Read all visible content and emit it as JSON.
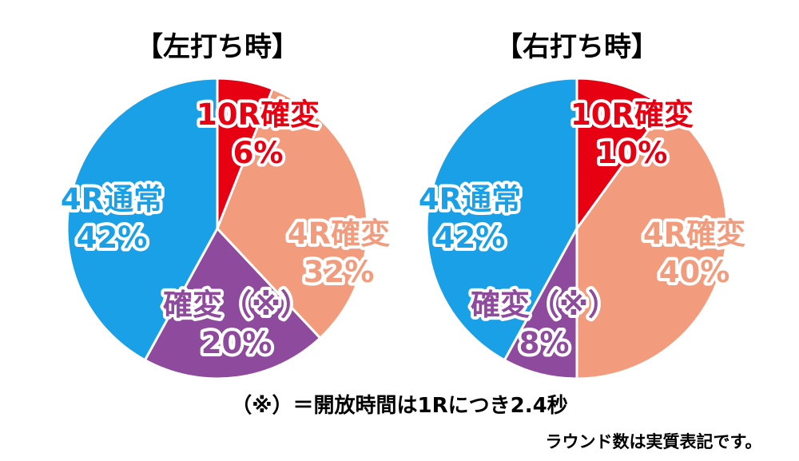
{
  "chart_data": [
    {
      "type": "pie",
      "title": "【左打ち時】",
      "slices": [
        {
          "label": "10R確変",
          "value": 6,
          "display": "6%",
          "color": "#e60012",
          "text_color": "#e60012"
        },
        {
          "label": "4R確変",
          "value": 32,
          "display": "32%",
          "color": "#f29c7d",
          "text_color": "#f29c7d"
        },
        {
          "label": "確変（※）",
          "value": 20,
          "display": "20%",
          "color": "#8e4a9c",
          "text_color": "#8e4a9c"
        },
        {
          "label": "4R通常",
          "value": 42,
          "display": "42%",
          "color": "#1aa0e6",
          "text_color": "#1aa0e6"
        }
      ]
    },
    {
      "type": "pie",
      "title": "【右打ち時】",
      "slices": [
        {
          "label": "10R確変",
          "value": 10,
          "display": "10%",
          "color": "#e60012",
          "text_color": "#e60012"
        },
        {
          "label": "4R確変",
          "value": 40,
          "display": "40%",
          "color": "#f29c7d",
          "text_color": "#f29c7d"
        },
        {
          "label": "確変（※）",
          "value": 8,
          "display": "8%",
          "color": "#8e4a9c",
          "text_color": "#8e4a9c"
        },
        {
          "label": "4R通常",
          "value": 42,
          "display": "42%",
          "color": "#1aa0e6",
          "text_color": "#1aa0e6"
        }
      ]
    }
  ],
  "footnotes": {
    "duration_note": "（※）＝開放時間は1Rにつき2.4秒",
    "round_note": "ラウンド数は実質表記です。"
  }
}
